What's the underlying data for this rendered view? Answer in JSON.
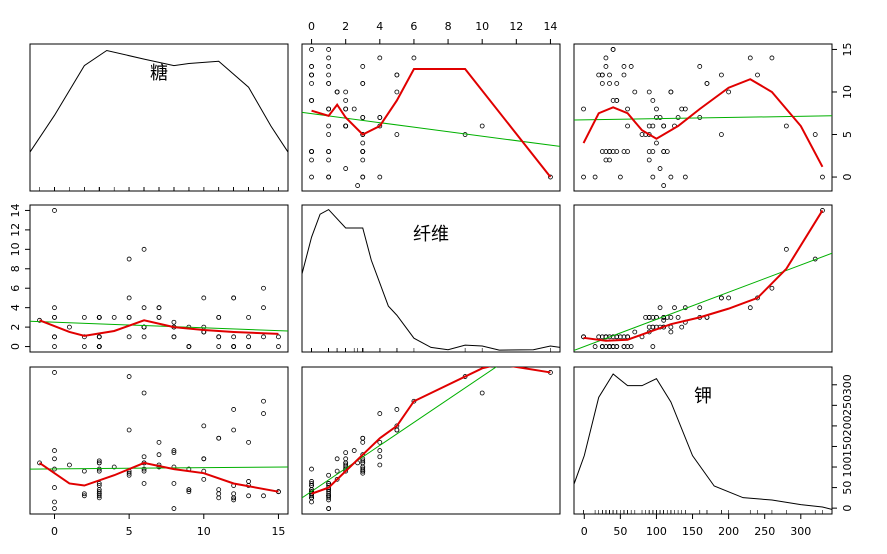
{
  "chart_data": {
    "type": "scatter_matrix",
    "point_color": "#000000",
    "linear_color": "#00b000",
    "smooth_color": "#e00000",
    "variables": [
      {
        "name": "糖",
        "values": [
          6,
          8,
          5,
          0,
          8,
          10,
          14,
          8,
          6,
          5,
          12,
          1,
          9,
          7,
          13,
          3,
          2,
          12,
          13,
          7,
          0,
          3,
          10,
          5,
          13,
          11,
          7,
          10,
          12,
          12,
          15,
          9,
          5,
          3,
          4,
          11,
          10,
          11,
          6,
          9,
          3,
          6,
          12,
          3,
          11,
          11,
          13,
          6,
          9,
          7,
          2,
          10,
          14,
          3,
          0,
          0,
          6,
          -1,
          12,
          8,
          6,
          2,
          3,
          0,
          0,
          0,
          15,
          3,
          5,
          3,
          14,
          3,
          3,
          12,
          3,
          3,
          8
        ],
        "lim": [
          -1.64,
          15.64
        ],
        "ticks": [
          0,
          5,
          10,
          15
        ],
        "density": {
          "x": [
            -1.64,
            0,
            2,
            3.5,
            6,
            8,
            9,
            11,
            13,
            14.5,
            15.64
          ],
          "y": [
            0.018,
            0.035,
            0.058,
            0.065,
            0.061,
            0.058,
            0.059,
            0.06,
            0.048,
            0.03,
            0.018
          ],
          "ylim": [
            0,
            0.068
          ]
        }
      },
      {
        "name": "纤维",
        "values": [
          10,
          2,
          9,
          14,
          1,
          1.5,
          1,
          2,
          4,
          5,
          0,
          2,
          0,
          4,
          0,
          0,
          1,
          1,
          0,
          4,
          1,
          1,
          2,
          1,
          1,
          1,
          3,
          5,
          5,
          0,
          0,
          0,
          3,
          3,
          3,
          1,
          1.5,
          0,
          1,
          2,
          0,
          2,
          0,
          0,
          3,
          3,
          3,
          2,
          0,
          3,
          3,
          1.5,
          6,
          1,
          0,
          1,
          2,
          2.7,
          5,
          2.5,
          2,
          0,
          0,
          3,
          4,
          3,
          1,
          1,
          3,
          0,
          4,
          3,
          0,
          0,
          3,
          3,
          1
        ],
        "lim": [
          -0.56,
          14.56
        ],
        "ticks": [
          0,
          2,
          4,
          6,
          8,
          10,
          12,
          14
        ],
        "density": {
          "x": [
            -0.56,
            0,
            0.5,
            1,
            2,
            3,
            3.5,
            4.5,
            5,
            6,
            7,
            8,
            9,
            10,
            11,
            13,
            14,
            14.56
          ],
          "y": [
            0.17,
            0.25,
            0.3,
            0.31,
            0.27,
            0.27,
            0.2,
            0.1,
            0.08,
            0.03,
            0.01,
            0.005,
            0.015,
            0.013,
            0.004,
            0.005,
            0.013,
            0.01
          ],
          "ylim": [
            0,
            0.32
          ]
        }
      },
      {
        "name": "钾",
        "values": [
          280,
          135,
          320,
          330,
          -1,
          70,
          30,
          100,
          125,
          190,
          35,
          105,
          45,
          105,
          55,
          25,
          35,
          20,
          65,
          160,
          -1,
          30,
          120,
          80,
          30,
          25,
          100,
          200,
          190,
          25,
          40,
          45,
          85,
          90,
          100,
          45,
          90,
          35,
          60,
          95,
          40,
          95,
          55,
          95,
          170,
          170,
          160,
          90,
          40,
          130,
          90,
          120,
          260,
          45,
          15,
          50,
          110,
          110,
          240,
          140,
          110,
          30,
          35,
          95,
          140,
          120,
          40,
          55,
          90,
          35,
          230,
          110,
          60,
          25,
          115,
          110,
          60
        ],
        "lim": [
          -14.24,
          343.24
        ],
        "ticks": [
          0,
          50,
          100,
          150,
          200,
          250,
          300
        ],
        "density": {
          "x": [
            -14,
            0,
            20,
            40,
            60,
            80,
            100,
            120,
            150,
            180,
            220,
            260,
            300,
            330,
            343
          ],
          "y": [
            0.0013,
            0.0025,
            0.005,
            0.006,
            0.0055,
            0.0055,
            0.0058,
            0.0048,
            0.0025,
            0.0012,
            0.0007,
            0.0006,
            0.0004,
            0.0003,
            0.0002
          ],
          "ylim": [
            0,
            0.0063
          ]
        }
      }
    ],
    "fits": [
      {
        "row": 0,
        "col": 1,
        "linear": {
          "x": [
            -0.56,
            14.56
          ],
          "y": [
            7.6,
            3.6
          ]
        },
        "smooth": {
          "x": [
            0,
            1,
            1.5,
            2,
            3,
            4,
            5,
            6,
            9,
            14
          ],
          "y": [
            7.8,
            7.2,
            8.5,
            7,
            5,
            6,
            9,
            12.7,
            12.7,
            0
          ]
        }
      },
      {
        "row": 0,
        "col": 2,
        "linear": {
          "x": [
            -14.24,
            343.24
          ],
          "y": [
            6.7,
            7.2
          ]
        },
        "smooth": {
          "x": [
            -1,
            20,
            40,
            60,
            80,
            100,
            130,
            160,
            200,
            230,
            260,
            300,
            330
          ],
          "y": [
            4,
            7.5,
            8.2,
            7.5,
            5.5,
            4.5,
            6,
            8,
            10.5,
            11.5,
            10,
            6,
            1.2
          ]
        }
      },
      {
        "row": 1,
        "col": 0,
        "linear": {
          "x": [
            -1.64,
            15.64
          ],
          "y": [
            2.6,
            1.6
          ]
        },
        "smooth": {
          "x": [
            -1,
            1,
            2,
            4,
            6,
            8,
            10,
            12,
            15
          ],
          "y": [
            2.7,
            1.5,
            1.1,
            1.6,
            2.7,
            2,
            1.7,
            1.5,
            1.3
          ]
        }
      },
      {
        "row": 1,
        "col": 2,
        "linear": {
          "x": [
            -14.24,
            343.24
          ],
          "y": [
            -0.4,
            9.6
          ]
        },
        "smooth": {
          "x": [
            -1,
            30,
            60,
            90,
            120,
            160,
            200,
            240,
            280,
            330
          ],
          "y": [
            0.9,
            0.6,
            0.7,
            1.5,
            2.3,
            3,
            3.9,
            5,
            8,
            14
          ]
        }
      },
      {
        "row": 2,
        "col": 0,
        "linear": {
          "x": [
            -1.64,
            15.64
          ],
          "y": [
            95,
            100
          ]
        },
        "smooth": {
          "x": [
            -1,
            1,
            2,
            4,
            6,
            8,
            10,
            12,
            15
          ],
          "y": [
            110,
            60,
            55,
            80,
            110,
            95,
            85,
            60,
            40
          ]
        }
      },
      {
        "row": 2,
        "col": 1,
        "linear": {
          "x": [
            -0.56,
            14.56
          ],
          "y": [
            25,
            448
          ]
        },
        "smooth": {
          "x": [
            0,
            1,
            2,
            3,
            4,
            5,
            6,
            10,
            11,
            14
          ],
          "y": [
            35,
            50,
            90,
            130,
            170,
            200,
            260,
            340,
            350,
            330
          ]
        }
      }
    ]
  }
}
